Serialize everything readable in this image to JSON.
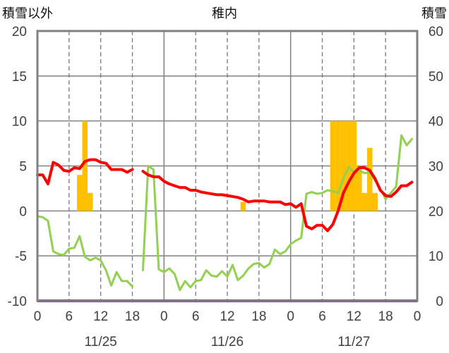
{
  "chart_data": {
    "type": "line",
    "title": "稚内",
    "left_axis_label": "積雪以外",
    "right_axis_label": "積雪",
    "left_ylim": [
      -10,
      20
    ],
    "left_yticks": [
      "20",
      "15",
      "10",
      "5",
      "0",
      "-5",
      "-10"
    ],
    "right_ylim": [
      0,
      60
    ],
    "right_yticks": [
      "60",
      "50",
      "40",
      "30",
      "20",
      "10",
      "0"
    ],
    "x_unit": "hours",
    "xlim": [
      0,
      72
    ],
    "x_hour_ticks": [
      "0",
      "6",
      "12",
      "18",
      "0",
      "6",
      "12",
      "18",
      "0",
      "6",
      "12",
      "18",
      "0"
    ],
    "date_labels": [
      "11/25",
      "11/26",
      "11/27"
    ],
    "grid": "dashed every 6h, solid at day boundaries",
    "colors": {
      "temperature": "#ff0000",
      "wind": "#92d050",
      "precip": "#ffc000",
      "snow_depth": "#7030a0"
    },
    "precip_bars": [
      {
        "hour": 8,
        "value": 4
      },
      {
        "hour": 9,
        "value": 10
      },
      {
        "hour": 10,
        "value": 2
      },
      {
        "hour": 39,
        "value": 1
      },
      {
        "hour": 56,
        "value": 10
      },
      {
        "hour": 57,
        "value": 10
      },
      {
        "hour": 58,
        "value": 10
      },
      {
        "hour": 59,
        "value": 10
      },
      {
        "hour": 60,
        "value": 10
      },
      {
        "hour": 61,
        "value": 5
      },
      {
        "hour": 62,
        "value": 2
      },
      {
        "hour": 63,
        "value": 7
      },
      {
        "hour": 64,
        "value": 2
      }
    ],
    "temperature": [
      [
        [
          0,
          4
        ],
        [
          1,
          4
        ],
        [
          2,
          3
        ],
        [
          3,
          5.4
        ],
        [
          4,
          5.1
        ],
        [
          5,
          4.5
        ],
        [
          6,
          4.4
        ],
        [
          7,
          4.8
        ],
        [
          8,
          4.7
        ],
        [
          9,
          5.5
        ],
        [
          10,
          5.7
        ],
        [
          11,
          5.7
        ],
        [
          12,
          5.4
        ],
        [
          13,
          5.3
        ],
        [
          14,
          4.6
        ],
        [
          15,
          4.6
        ],
        [
          16,
          4.6
        ],
        [
          17,
          4.3
        ],
        [
          18,
          4.6
        ]
      ],
      [
        [
          20,
          4.4
        ],
        [
          21,
          4
        ],
        [
          22,
          3.8
        ],
        [
          23,
          3.8
        ],
        [
          24,
          3.3
        ],
        [
          25,
          3
        ],
        [
          26,
          2.8
        ],
        [
          27,
          2.6
        ],
        [
          28,
          2.6
        ],
        [
          29,
          2.3
        ],
        [
          30,
          2.3
        ],
        [
          31,
          2.1
        ],
        [
          32,
          2
        ],
        [
          33,
          1.9
        ],
        [
          34,
          1.8
        ],
        [
          35,
          1.8
        ],
        [
          36,
          1.7
        ],
        [
          37,
          1.6
        ],
        [
          38,
          1.5
        ],
        [
          39,
          1.3
        ],
        [
          40,
          1
        ],
        [
          41,
          1.1
        ],
        [
          42,
          1.1
        ],
        [
          43,
          1.1
        ],
        [
          44,
          1
        ],
        [
          45,
          1
        ],
        [
          46,
          1
        ],
        [
          47,
          0.7
        ],
        [
          48,
          0.8
        ],
        [
          49,
          0.4
        ],
        [
          50,
          0.8
        ],
        [
          51,
          -1.7
        ],
        [
          52,
          -2
        ],
        [
          53,
          -1.6
        ],
        [
          54,
          -1.6
        ],
        [
          55,
          -2.2
        ],
        [
          56,
          -1.5
        ],
        [
          57,
          0
        ],
        [
          58,
          2
        ],
        [
          59,
          3.2
        ],
        [
          60,
          4.2
        ],
        [
          61,
          4.8
        ],
        [
          62,
          4.8
        ],
        [
          63,
          4.5
        ],
        [
          64,
          3.6
        ],
        [
          65,
          2.3
        ],
        [
          66,
          1.7
        ],
        [
          67,
          1.6
        ],
        [
          68,
          2.1
        ],
        [
          69,
          2.8
        ],
        [
          70,
          2.8
        ],
        [
          71,
          3.2
        ]
      ]
    ],
    "wind": [
      [
        [
          0,
          -0.6
        ],
        [
          1,
          -0.7
        ],
        [
          2,
          -1.1
        ],
        [
          3,
          -4.5
        ],
        [
          4,
          -4.8
        ],
        [
          5,
          -4.9
        ],
        [
          6,
          -4.2
        ],
        [
          7,
          -4.1
        ],
        [
          8,
          -2.8
        ],
        [
          9,
          -5.1
        ],
        [
          10,
          -5.5
        ],
        [
          11,
          -5.2
        ],
        [
          12,
          -5.5
        ],
        [
          13,
          -6.6
        ],
        [
          14,
          -8.3
        ],
        [
          15,
          -6.8
        ],
        [
          16,
          -7.8
        ],
        [
          17,
          -7.8
        ],
        [
          18,
          -8.4
        ]
      ],
      [
        [
          20,
          -6.6
        ],
        [
          21,
          5
        ],
        [
          22,
          4.6
        ],
        [
          23,
          -6.5
        ],
        [
          24,
          -6.8
        ],
        [
          25,
          -6.4
        ],
        [
          26,
          -7
        ],
        [
          27,
          -8.8
        ],
        [
          28,
          -7.8
        ],
        [
          29,
          -8.5
        ],
        [
          30,
          -7.8
        ],
        [
          31,
          -7.7
        ],
        [
          32,
          -6.6
        ],
        [
          33,
          -7.2
        ],
        [
          34,
          -7.3
        ],
        [
          35,
          -6.7
        ],
        [
          36,
          -7.3
        ],
        [
          37,
          -6
        ],
        [
          38,
          -7.7
        ],
        [
          39,
          -7.2
        ],
        [
          40,
          -6.4
        ],
        [
          41,
          -5.9
        ],
        [
          42,
          -5.8
        ],
        [
          43,
          -6.3
        ],
        [
          44,
          -5.9
        ],
        [
          45,
          -4.3
        ],
        [
          46,
          -4.8
        ],
        [
          47,
          -4.5
        ],
        [
          48,
          -3.7
        ],
        [
          49,
          -3.3
        ],
        [
          50,
          -3
        ],
        [
          51,
          1.9
        ],
        [
          52,
          2.1
        ],
        [
          53,
          1.9
        ],
        [
          54,
          2
        ],
        [
          55,
          2.3
        ],
        [
          56,
          2.2
        ],
        [
          57,
          2
        ],
        [
          58,
          3.6
        ],
        [
          59,
          4.9
        ],
        [
          60,
          4.3
        ],
        [
          61,
          4.5
        ],
        [
          62,
          4.2
        ],
        [
          63,
          4.3
        ],
        [
          64,
          3.4
        ],
        [
          65,
          2.5
        ],
        [
          66,
          1.3
        ],
        [
          67,
          2
        ],
        [
          68,
          2.7
        ],
        [
          69,
          8.4
        ],
        [
          70,
          7.3
        ],
        [
          71,
          8
        ]
      ]
    ],
    "snow_depth": [
      [
        0,
        0
      ],
      [
        72,
        0
      ]
    ]
  }
}
